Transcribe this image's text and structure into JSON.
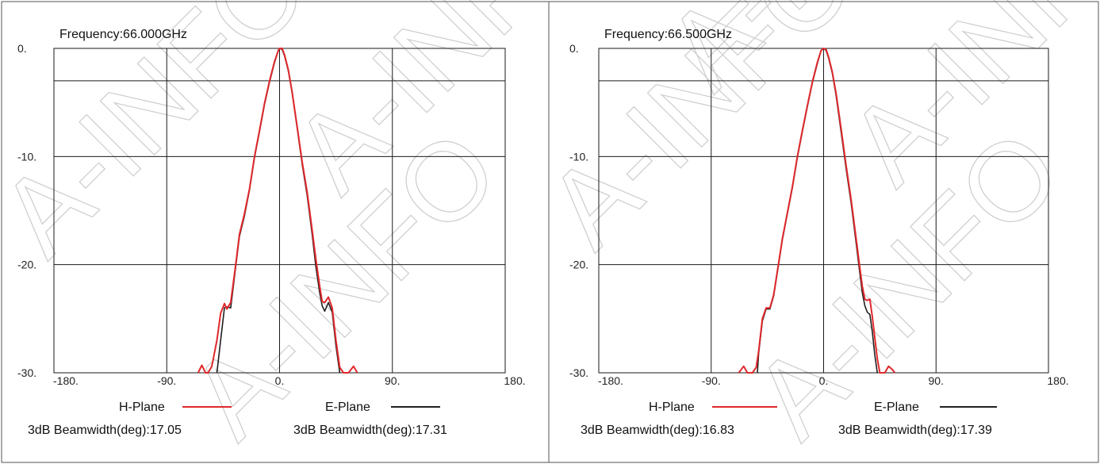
{
  "chart_data": [
    {
      "type": "line",
      "title": "Frequency:66.000GHz",
      "xlim": [
        -180,
        180
      ],
      "ylim": [
        -30,
        0
      ],
      "x_ticks": [
        -180,
        -90,
        0,
        90,
        180
      ],
      "x_tick_labels": [
        "-180.",
        "-90.",
        "0.",
        "90.",
        "180."
      ],
      "y_ticks": [
        0,
        -10,
        -20,
        -30
      ],
      "y_tick_labels": [
        "0.",
        "-10.",
        "-20.",
        "-30."
      ],
      "reference_line": -3,
      "grid": true,
      "legend_position": "bottom",
      "series": [
        {
          "name": "H-Plane",
          "color": "#e0282c",
          "beamwidth_label": "3dB Beamwidth(deg):17.05",
          "points": [
            [
              -65,
              -30
            ],
            [
              -62,
              -29.3
            ],
            [
              -59,
              -30
            ],
            [
              -57,
              -30
            ],
            [
              -54,
              -29.4
            ],
            [
              -50,
              -27
            ],
            [
              -47,
              -24.5
            ],
            [
              -44,
              -23.6
            ],
            [
              -42,
              -24.1
            ],
            [
              -39,
              -23.5
            ],
            [
              -35,
              -20
            ],
            [
              -32,
              -17.2
            ],
            [
              -28,
              -15.3
            ],
            [
              -24,
              -13
            ],
            [
              -20,
              -10
            ],
            [
              -16,
              -7.6
            ],
            [
              -12,
              -5.1
            ],
            [
              -8,
              -3
            ],
            [
              -4,
              -1.2
            ],
            [
              -1,
              -0.2
            ],
            [
              0,
              0
            ],
            [
              2,
              0
            ],
            [
              4,
              -0.6
            ],
            [
              7,
              -2
            ],
            [
              10,
              -4
            ],
            [
              14,
              -7.2
            ],
            [
              18,
              -10.5
            ],
            [
              22,
              -13.3
            ],
            [
              26,
              -16.8
            ],
            [
              29,
              -19.5
            ],
            [
              32,
              -22
            ],
            [
              34,
              -23.4
            ],
            [
              36,
              -23.5
            ],
            [
              39,
              -23
            ],
            [
              42,
              -24
            ],
            [
              45,
              -27
            ],
            [
              48,
              -29.5
            ],
            [
              51,
              -30
            ],
            [
              55,
              -30
            ],
            [
              59,
              -29.4
            ],
            [
              62,
              -30
            ]
          ]
        },
        {
          "name": "E-Plane",
          "color": "#202020",
          "beamwidth_label": "3dB Beamwidth(deg):17.31",
          "points": [
            [
              -50,
              -30
            ],
            [
              -47,
              -27
            ],
            [
              -44,
              -24
            ],
            [
              -42,
              -23.9
            ],
            [
              -39,
              -24
            ],
            [
              -35,
              -20.2
            ],
            [
              -32,
              -17.4
            ],
            [
              -28,
              -15.5
            ],
            [
              -24,
              -13.1
            ],
            [
              -20,
              -10.1
            ],
            [
              -16,
              -7.7
            ],
            [
              -12,
              -5.2
            ],
            [
              -8,
              -3.1
            ],
            [
              -4,
              -1.3
            ],
            [
              -1,
              -0.2
            ],
            [
              0,
              0
            ],
            [
              2,
              -0.1
            ],
            [
              4,
              -0.7
            ],
            [
              7,
              -2.1
            ],
            [
              10,
              -4.1
            ],
            [
              14,
              -7.3
            ],
            [
              18,
              -10.7
            ],
            [
              22,
              -13.6
            ],
            [
              26,
              -17.2
            ],
            [
              29,
              -20.2
            ],
            [
              32,
              -22.6
            ],
            [
              34,
              -23.8
            ],
            [
              36,
              -24.3
            ],
            [
              39,
              -23.5
            ],
            [
              42,
              -24.4
            ],
            [
              45,
              -27.5
            ],
            [
              48,
              -30
            ]
          ]
        }
      ]
    },
    {
      "type": "line",
      "title": "Frequency:66.500GHz",
      "xlim": [
        -180,
        180
      ],
      "ylim": [
        -30,
        0
      ],
      "x_ticks": [
        -180,
        -90,
        0,
        90,
        180
      ],
      "x_tick_labels": [
        "-180.",
        "-90.",
        "0.",
        "90.",
        "180."
      ],
      "y_ticks": [
        0,
        -10,
        -20,
        -30
      ],
      "y_tick_labels": [
        "0.",
        "-10.",
        "-20.",
        "-30."
      ],
      "reference_line": -3,
      "grid": true,
      "legend_position": "bottom",
      "series": [
        {
          "name": "H-Plane",
          "color": "#e0282c",
          "beamwidth_label": "3dB Beamwidth(deg):16.83",
          "points": [
            [
              -68,
              -30
            ],
            [
              -64,
              -29.4
            ],
            [
              -61,
              -30
            ],
            [
              -57,
              -30
            ],
            [
              -54,
              -29.5
            ],
            [
              -52,
              -28
            ],
            [
              -49,
              -25
            ],
            [
              -46,
              -24
            ],
            [
              -43,
              -24
            ],
            [
              -40,
              -22.8
            ],
            [
              -37,
              -20.6
            ],
            [
              -33,
              -17.6
            ],
            [
              -29,
              -15.2
            ],
            [
              -25,
              -12.8
            ],
            [
              -21,
              -10
            ],
            [
              -17,
              -7.6
            ],
            [
              -13,
              -5.3
            ],
            [
              -9,
              -3.1
            ],
            [
              -5,
              -1.3
            ],
            [
              -2,
              -0.2
            ],
            [
              0,
              0
            ],
            [
              2,
              -0.1
            ],
            [
              4,
              -0.8
            ],
            [
              7,
              -2.2
            ],
            [
              10,
              -4.2
            ],
            [
              14,
              -7.4
            ],
            [
              18,
              -10.8
            ],
            [
              22,
              -14
            ],
            [
              26,
              -17.6
            ],
            [
              29,
              -20.3
            ],
            [
              31,
              -22
            ],
            [
              33,
              -23.2
            ],
            [
              35,
              -23.3
            ],
            [
              37,
              -23.2
            ],
            [
              39,
              -24.8
            ],
            [
              41,
              -26.8
            ],
            [
              43,
              -28.7
            ],
            [
              45,
              -30
            ],
            [
              49,
              -30
            ],
            [
              52,
              -29.4
            ],
            [
              55,
              -29.7
            ],
            [
              57,
              -30
            ]
          ]
        },
        {
          "name": "E-Plane",
          "color": "#202020",
          "beamwidth_label": "3dB Beamwidth(deg):17.39",
          "points": [
            [
              -53,
              -30
            ],
            [
              -52,
              -28.2
            ],
            [
              -49,
              -25.2
            ],
            [
              -46,
              -24.1
            ],
            [
              -43,
              -24.1
            ],
            [
              -40,
              -22.9
            ],
            [
              -37,
              -20.7
            ],
            [
              -33,
              -17.7
            ],
            [
              -29,
              -15.3
            ],
            [
              -25,
              -12.9
            ],
            [
              -21,
              -10.1
            ],
            [
              -17,
              -7.7
            ],
            [
              -13,
              -5.4
            ],
            [
              -9,
              -3.2
            ],
            [
              -5,
              -1.4
            ],
            [
              -2,
              -0.2
            ],
            [
              0,
              0
            ],
            [
              2,
              -0.2
            ],
            [
              4,
              -0.9
            ],
            [
              7,
              -2.3
            ],
            [
              10,
              -4.4
            ],
            [
              14,
              -7.7
            ],
            [
              18,
              -11.1
            ],
            [
              22,
              -14.3
            ],
            [
              26,
              -18
            ],
            [
              29,
              -20.8
            ],
            [
              31,
              -22.6
            ],
            [
              33,
              -23.8
            ],
            [
              35,
              -24.4
            ],
            [
              37,
              -24.6
            ],
            [
              39,
              -26.2
            ],
            [
              41,
              -28.4
            ],
            [
              43,
              -30
            ]
          ]
        }
      ]
    }
  ],
  "watermark": "A-INFO"
}
